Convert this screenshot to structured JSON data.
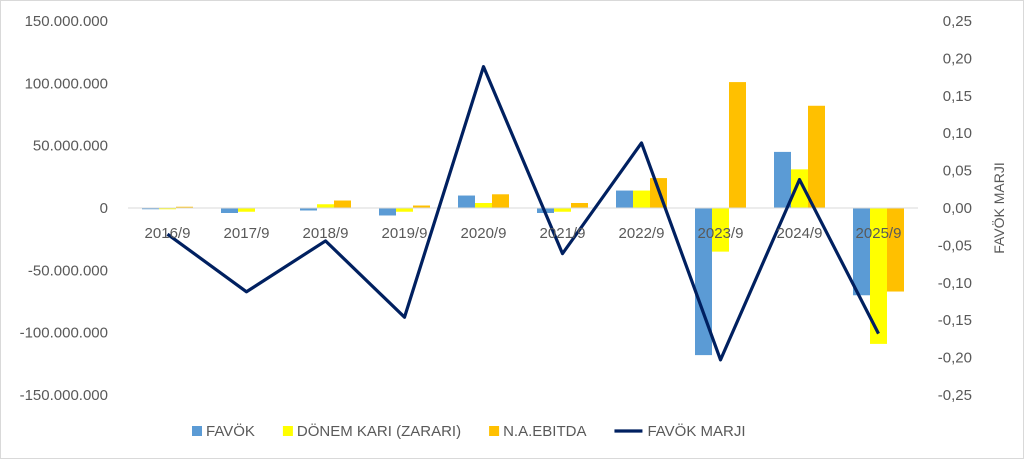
{
  "chart_data": {
    "type": "bar",
    "categories": [
      "2016/9",
      "2017/9",
      "2018/9",
      "2019/9",
      "2020/9",
      "2021/9",
      "2022/9",
      "2023/9",
      "2024/9",
      "2025/9"
    ],
    "series": [
      {
        "name": "FAVÖK",
        "type": "bar",
        "axis": "left",
        "color": "#5B9BD5",
        "values": [
          -1000000,
          -4000000,
          -2000000,
          -6000000,
          10000000,
          -4000000,
          14000000,
          -118000000,
          45000000,
          -70000000
        ]
      },
      {
        "name": "DÖNEM KARI (ZARARI)",
        "type": "bar",
        "axis": "left",
        "color": "#FFFF00",
        "values": [
          -1000000,
          -3000000,
          3000000,
          -3000000,
          4000000,
          -3000000,
          14000000,
          -35000000,
          31000000,
          -109000000
        ]
      },
      {
        "name": "N.A.EBITDA",
        "type": "bar",
        "axis": "left",
        "color": "#FFC000",
        "values": [
          1000000,
          0,
          6000000,
          2000000,
          11000000,
          4000000,
          24000000,
          101000000,
          82000000,
          -67000000
        ]
      },
      {
        "name": "FAVÖK MARJI",
        "type": "line",
        "axis": "right",
        "color": "#002060",
        "values": [
          -0.035,
          -0.112,
          -0.044,
          -0.146,
          0.189,
          -0.061,
          0.087,
          -0.203,
          0.038,
          -0.168
        ]
      }
    ],
    "left_axis": {
      "min": -150000000,
      "max": 150000000,
      "step": 50000000,
      "tick_labels": [
        "150.000.000",
        "100.000.000",
        "50.000.000",
        "0",
        "-50.000.000",
        "-100.000.000",
        "-150.000.000"
      ]
    },
    "right_axis": {
      "min": -0.25,
      "max": 0.25,
      "step": 0.05,
      "title": "FAVÖK MARJI",
      "tick_labels": [
        "0,25",
        "0,20",
        "0,15",
        "0,10",
        "0,05",
        "0,00",
        "-0,05",
        "-0,10",
        "-0,15",
        "-0,20",
        "-0,25"
      ]
    },
    "grid": false,
    "legend_position": "bottom"
  }
}
